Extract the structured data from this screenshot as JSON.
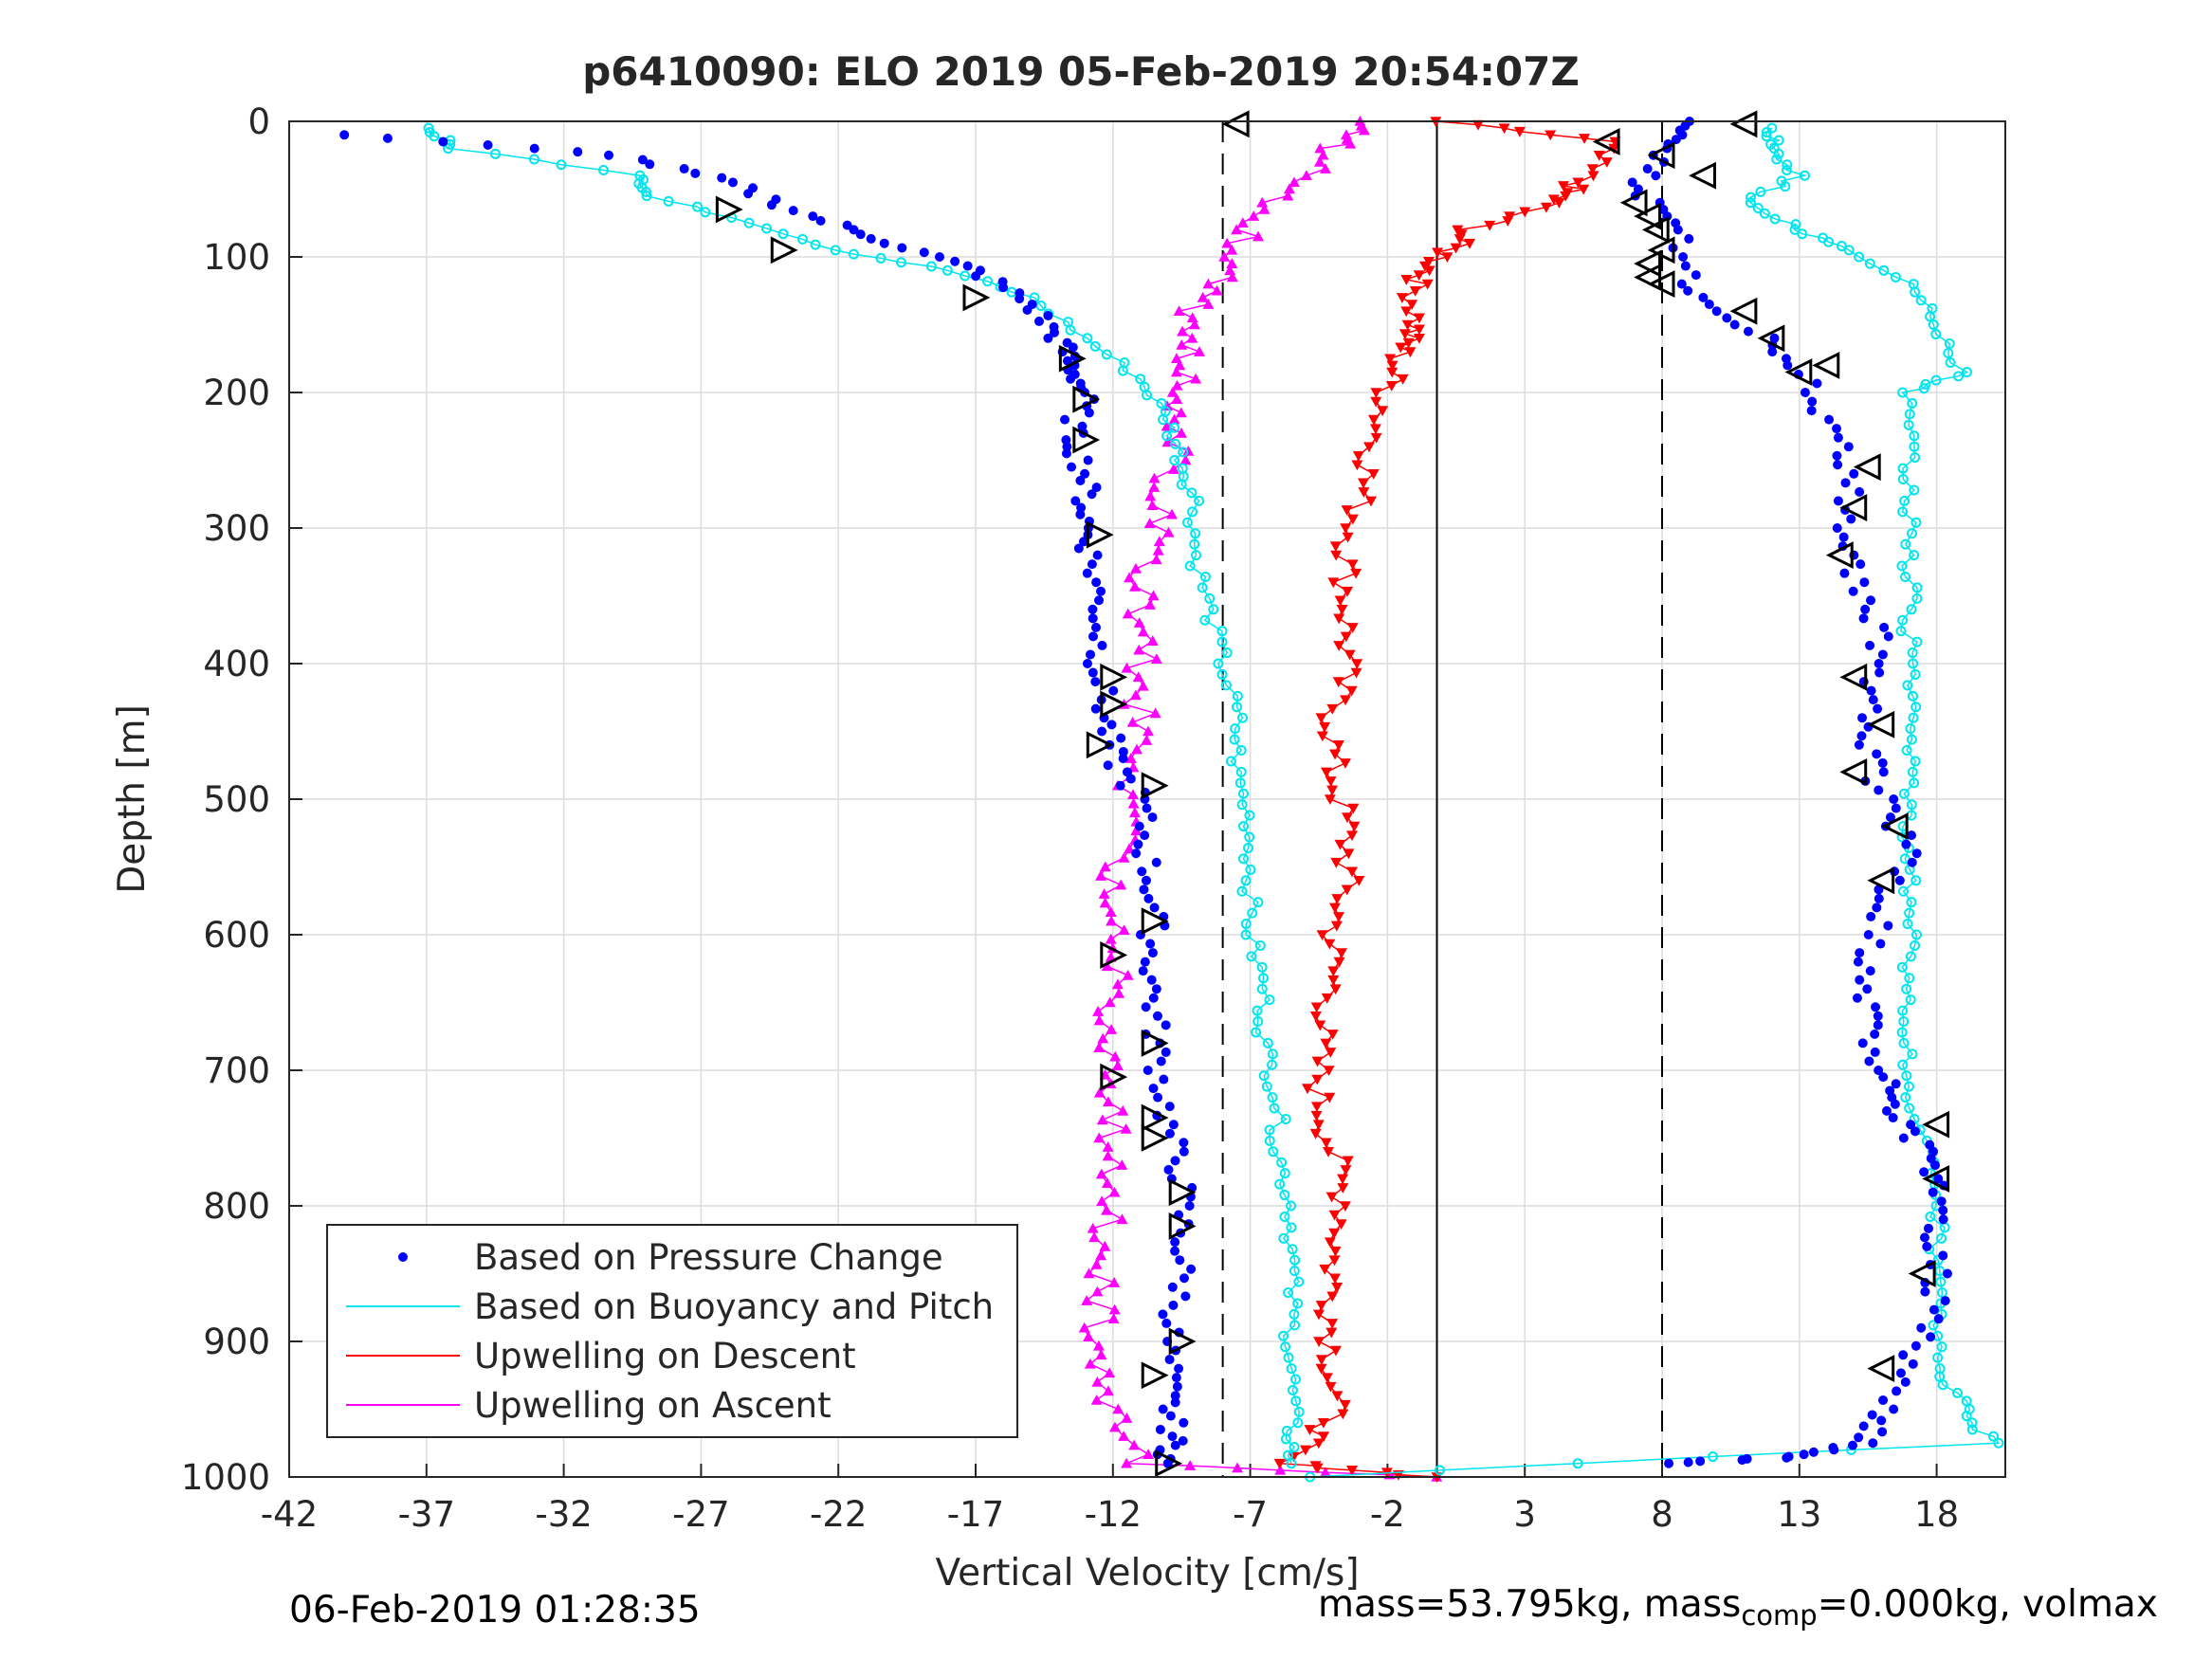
{
  "chart_data": {
    "type": "scatter",
    "title": "p6410090: ELO 2019 05-Feb-2019 20:54:07Z",
    "xlabel": "Vertical Velocity [cm/s]",
    "ylabel": "Depth [m]",
    "xlim": [
      -42,
      20.5
    ],
    "ylim": [
      1000,
      0
    ],
    "y_reversed": true,
    "xticks": [
      "-42",
      "-37",
      "-32",
      "-27",
      "-22",
      "-17",
      "-12",
      "-7",
      "-2",
      "3",
      "8",
      "13",
      "18"
    ],
    "yticks": [
      "0",
      "100",
      "200",
      "300",
      "400",
      "500",
      "600",
      "700",
      "800",
      "900",
      "1000"
    ],
    "grid": true,
    "legend_position": "bottom-left",
    "reference_lines": {
      "solid_x": -0.2,
      "dashed_x": [
        -8,
        8
      ]
    },
    "series": [
      {
        "name": "Based on Pressure Change",
        "color": "#0000ff",
        "marker": "dot",
        "descent": [
          [
            -40,
            10
          ],
          [
            -30,
            25
          ],
          [
            -26,
            45
          ],
          [
            -23,
            70
          ],
          [
            -20,
            90
          ],
          [
            -17,
            110
          ],
          [
            -15,
            135
          ],
          [
            -14,
            160
          ],
          [
            -13.5,
            180
          ],
          [
            -13,
            200
          ],
          [
            -13.5,
            230
          ],
          [
            -13,
            260
          ],
          [
            -13,
            290
          ],
          [
            -12.8,
            320
          ],
          [
            -12.5,
            360
          ],
          [
            -12.5,
            400
          ],
          [
            -12.3,
            440
          ],
          [
            -12,
            470
          ],
          [
            -11,
            500
          ],
          [
            -10.8,
            540
          ],
          [
            -10.5,
            580
          ],
          [
            -10.6,
            620
          ],
          [
            -10.5,
            660
          ],
          [
            -10.3,
            700
          ],
          [
            -10,
            740
          ],
          [
            -9.5,
            780
          ],
          [
            -9.5,
            820
          ],
          [
            -9.5,
            860
          ],
          [
            -10,
            900
          ],
          [
            -10,
            940
          ],
          [
            -9.8,
            970
          ],
          [
            -10,
            990
          ]
        ],
        "ascent": [
          [
            8,
            990
          ],
          [
            13,
            985
          ],
          [
            15.5,
            975
          ],
          [
            16,
            950
          ],
          [
            17,
            910
          ],
          [
            18,
            870
          ],
          [
            18,
            830
          ],
          [
            18,
            790
          ],
          [
            17.5,
            760
          ],
          [
            16.5,
            730
          ],
          [
            16,
            700
          ],
          [
            15.5,
            660
          ],
          [
            15.5,
            620
          ],
          [
            16,
            580
          ],
          [
            17,
            540
          ],
          [
            16,
            500
          ],
          [
            15.5,
            460
          ],
          [
            15.5,
            420
          ],
          [
            16,
            380
          ],
          [
            15,
            340
          ],
          [
            14.5,
            300
          ],
          [
            15,
            260
          ],
          [
            14,
            220
          ],
          [
            13,
            180
          ],
          [
            11,
            150
          ],
          [
            9,
            120
          ],
          [
            8.5,
            80
          ],
          [
            7,
            50
          ],
          [
            8,
            20
          ],
          [
            9,
            0
          ]
        ]
      },
      {
        "name": "Based on Buoyancy and Pitch",
        "color": "#00e5ee",
        "marker": "circle-line",
        "descent": [
          [
            -37,
            5
          ],
          [
            -36,
            20
          ],
          [
            -29,
            40
          ],
          [
            -29,
            55
          ],
          [
            -25,
            75
          ],
          [
            -22,
            95
          ],
          [
            -18,
            110
          ],
          [
            -15,
            130
          ],
          [
            -13,
            160
          ],
          [
            -11,
            190
          ],
          [
            -10,
            220
          ],
          [
            -9.5,
            250
          ],
          [
            -9,
            280
          ],
          [
            -9,
            320
          ],
          [
            -8.5,
            360
          ],
          [
            -8,
            400
          ],
          [
            -7.5,
            440
          ],
          [
            -7.5,
            480
          ],
          [
            -7,
            520
          ],
          [
            -7,
            560
          ],
          [
            -7,
            600
          ],
          [
            -6.5,
            640
          ],
          [
            -6.5,
            680
          ],
          [
            -6,
            720
          ],
          [
            -6,
            760
          ],
          [
            -5.5,
            800
          ],
          [
            -5.5,
            840
          ],
          [
            -5.5,
            880
          ],
          [
            -5.5,
            920
          ],
          [
            -5.5,
            960
          ],
          [
            -5.5,
            990
          ]
        ],
        "ascent": [
          [
            -5,
            1000
          ],
          [
            20,
            975
          ],
          [
            19,
            950
          ],
          [
            18,
            920
          ],
          [
            18,
            880
          ],
          [
            18,
            840
          ],
          [
            18,
            800
          ],
          [
            18,
            760
          ],
          [
            17,
            720
          ],
          [
            17,
            680
          ],
          [
            17,
            640
          ],
          [
            17,
            600
          ],
          [
            17,
            560
          ],
          [
            17,
            520
          ],
          [
            17,
            480
          ],
          [
            17,
            440
          ],
          [
            17,
            400
          ],
          [
            17,
            360
          ],
          [
            17,
            320
          ],
          [
            17,
            280
          ],
          [
            17,
            240
          ],
          [
            17,
            200
          ],
          [
            19,
            185
          ],
          [
            18,
            150
          ],
          [
            17,
            120
          ],
          [
            15,
            95
          ],
          [
            13,
            80
          ],
          [
            11,
            60
          ],
          [
            13,
            40
          ],
          [
            12,
            20
          ],
          [
            12,
            5
          ]
        ]
      },
      {
        "name": "Upwelling on Descent",
        "color": "#ff0000",
        "marker": "triangle-down",
        "values": [
          [
            -0.2,
            0
          ],
          [
            6,
            15
          ],
          [
            5,
            45
          ],
          [
            4,
            60
          ],
          [
            1,
            80
          ],
          [
            0,
            100
          ],
          [
            -1,
            120
          ],
          [
            -1,
            150
          ],
          [
            -1.5,
            170
          ],
          [
            -2,
            200
          ],
          [
            -2.5,
            240
          ],
          [
            -3,
            280
          ],
          [
            -3.5,
            320
          ],
          [
            -3.5,
            360
          ],
          [
            -3.5,
            400
          ],
          [
            -4,
            440
          ],
          [
            -4,
            480
          ],
          [
            -3.5,
            520
          ],
          [
            -3.5,
            560
          ],
          [
            -4,
            600
          ],
          [
            -4,
            640
          ],
          [
            -4.5,
            680
          ],
          [
            -4.5,
            720
          ],
          [
            -4,
            760
          ],
          [
            -3.5,
            800
          ],
          [
            -4,
            840
          ],
          [
            -4,
            880
          ],
          [
            -4,
            920
          ],
          [
            -4,
            960
          ],
          [
            -6,
            990
          ],
          [
            -0.2,
            1000
          ]
        ]
      },
      {
        "name": "Upwelling on Ascent",
        "color": "#ff00ff",
        "marker": "triangle-up",
        "values": [
          [
            -0.2,
            1000
          ],
          [
            -11,
            990
          ],
          [
            -12,
            950
          ],
          [
            -12.5,
            910
          ],
          [
            -12.5,
            870
          ],
          [
            -12.5,
            830
          ],
          [
            -12,
            790
          ],
          [
            -12,
            750
          ],
          [
            -12.2,
            710
          ],
          [
            -12,
            670
          ],
          [
            -12,
            630
          ],
          [
            -12,
            590
          ],
          [
            -12,
            550
          ],
          [
            -11.5,
            510
          ],
          [
            -11,
            470
          ],
          [
            -11,
            430
          ],
          [
            -11,
            390
          ],
          [
            -11,
            350
          ],
          [
            -10.5,
            310
          ],
          [
            -10,
            270
          ],
          [
            -9.5,
            230
          ],
          [
            -9.5,
            200
          ],
          [
            -9,
            170
          ],
          [
            -9,
            140
          ],
          [
            -8,
            110
          ],
          [
            -7,
            80
          ],
          [
            -5.5,
            50
          ],
          [
            -4,
            20
          ],
          [
            -3,
            0
          ]
        ]
      }
    ],
    "markers": {
      "descent_triangles": [
        [
          -26,
          65
        ],
        [
          -24,
          95
        ],
        [
          -17,
          130
        ],
        [
          -13.5,
          175
        ],
        [
          -13,
          205
        ],
        [
          -13,
          235
        ],
        [
          -12.5,
          305
        ],
        [
          -12,
          410
        ],
        [
          -12,
          430
        ],
        [
          -12.5,
          460
        ],
        [
          -10.5,
          490
        ],
        [
          -10.5,
          590
        ],
        [
          -12,
          615
        ],
        [
          -10.5,
          680
        ],
        [
          -12,
          705
        ],
        [
          -10.5,
          735
        ],
        [
          -10.5,
          750
        ],
        [
          -9.5,
          790
        ],
        [
          -9.5,
          815
        ],
        [
          -9.5,
          900
        ],
        [
          -10.5,
          925
        ],
        [
          -10,
          990
        ]
      ],
      "ascent_triangles": [
        [
          -7.5,
          2
        ],
        [
          11,
          2
        ],
        [
          6,
          15
        ],
        [
          8,
          25
        ],
        [
          9.5,
          40
        ],
        [
          7,
          60
        ],
        [
          7.5,
          70
        ],
        [
          7.8,
          80
        ],
        [
          8,
          95
        ],
        [
          7.5,
          105
        ],
        [
          7.5,
          115
        ],
        [
          8,
          120
        ],
        [
          11,
          140
        ],
        [
          12,
          160
        ],
        [
          13,
          185
        ],
        [
          14,
          180
        ],
        [
          15.5,
          255
        ],
        [
          15,
          285
        ],
        [
          14.5,
          320
        ],
        [
          15,
          410
        ],
        [
          16,
          445
        ],
        [
          15,
          480
        ],
        [
          16.5,
          520
        ],
        [
          16,
          560
        ],
        [
          18,
          740
        ],
        [
          18,
          780
        ],
        [
          17.5,
          850
        ],
        [
          16,
          920
        ]
      ]
    }
  },
  "footer": {
    "left": "06-Feb-2019 01:28:35",
    "right_a": "mass=53.795kg, mass",
    "right_sub": "comp",
    "right_b": "=0.000kg, volmax"
  }
}
